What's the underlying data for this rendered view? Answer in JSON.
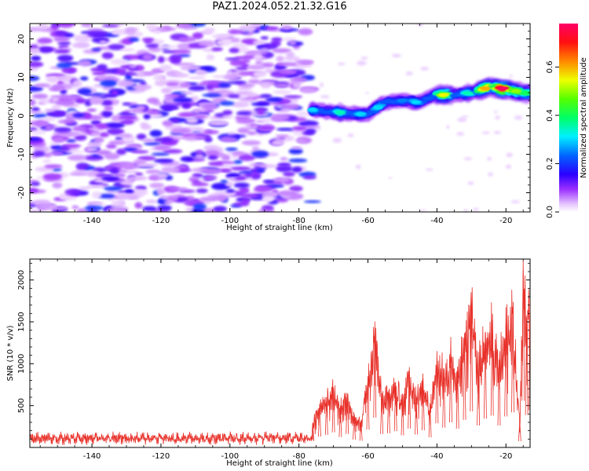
{
  "title": "PAZ1.2024.052.21.32.G16",
  "chart_data": [
    {
      "type": "heatmap",
      "xlabel": "Height of straight line (km)",
      "ylabel": "Frequency (Hz)",
      "xlim": [
        -158,
        -13
      ],
      "ylim": [
        -25,
        24
      ],
      "xticks": [
        -140,
        -120,
        -100,
        -80,
        -60,
        -40,
        -20
      ],
      "yticks": [
        -20,
        -10,
        0,
        10,
        20
      ],
      "colorbar": {
        "label": "Normalized spectral amplitude",
        "ticks": [
          0.0,
          0.2,
          0.4,
          0.6
        ],
        "tick_labels": [
          "0.0",
          "0.2",
          "0.4",
          "0.6"
        ],
        "range": [
          0,
          0.78
        ],
        "colormap": "gist_rainbow_r"
      },
      "features": [
        {
          "region": "noise",
          "x_range": [
            -158,
            -76
          ],
          "y_range": [
            -25,
            24
          ],
          "amplitude_range": [
            0.0,
            0.22
          ]
        },
        {
          "region": "signal",
          "x_range": [
            -76,
            -13
          ],
          "ridge": [
            [
              -76,
              1.5
            ],
            [
              -70,
              1
            ],
            [
              -65,
              0.5
            ],
            [
              -60,
              0.5
            ],
            [
              -55,
              3.5
            ],
            [
              -50,
              4
            ],
            [
              -45,
              3.5
            ],
            [
              -40,
              5.5
            ],
            [
              -35,
              5.5
            ],
            [
              -30,
              6
            ],
            [
              -25,
              7.5
            ],
            [
              -20,
              7
            ],
            [
              -15,
              6
            ]
          ],
          "peak_amplitudes": [
            [
              -76,
              0.3
            ],
            [
              -68,
              0.35
            ],
            [
              -62,
              0.3
            ],
            [
              -57,
              0.3
            ],
            [
              -50,
              0.25
            ],
            [
              -46,
              0.3
            ],
            [
              -38,
              0.55
            ],
            [
              -31,
              0.35
            ],
            [
              -26,
              0.6
            ],
            [
              -21,
              0.78
            ],
            [
              -17,
              0.5
            ],
            [
              -14,
              0.4
            ]
          ]
        }
      ]
    },
    {
      "type": "line",
      "xlabel": "Height of straight line (km)",
      "ylabel": "SNR (10 * v/v)",
      "xlim": [
        -158,
        -13
      ],
      "ylim": [
        0,
        2250
      ],
      "xticks": [
        -140,
        -120,
        -100,
        -80,
        -60,
        -40,
        -20
      ],
      "yticks": [
        500,
        1000,
        1500,
        2000
      ],
      "color": "#e8312a",
      "x": [
        -158,
        -150,
        -140,
        -130,
        -120,
        -110,
        -100,
        -90,
        -80,
        -78,
        -76,
        -74,
        -72,
        -70,
        -68,
        -66,
        -64,
        -62,
        -60,
        -58,
        -56,
        -54,
        -52,
        -50,
        -48,
        -46,
        -44,
        -42,
        -40,
        -38,
        -36,
        -34,
        -32,
        -30,
        -28,
        -26,
        -24,
        -22,
        -20,
        -18,
        -16,
        -15,
        -14,
        -13
      ],
      "values": [
        120,
        150,
        140,
        130,
        150,
        140,
        130,
        150,
        180,
        230,
        300,
        520,
        600,
        720,
        500,
        650,
        380,
        320,
        850,
        1420,
        650,
        680,
        780,
        580,
        900,
        620,
        820,
        480,
        1150,
        950,
        1200,
        900,
        1320,
        1720,
        1050,
        1380,
        1520,
        1050,
        1480,
        1680,
        300,
        2230,
        1550,
        1780
      ]
    }
  ]
}
